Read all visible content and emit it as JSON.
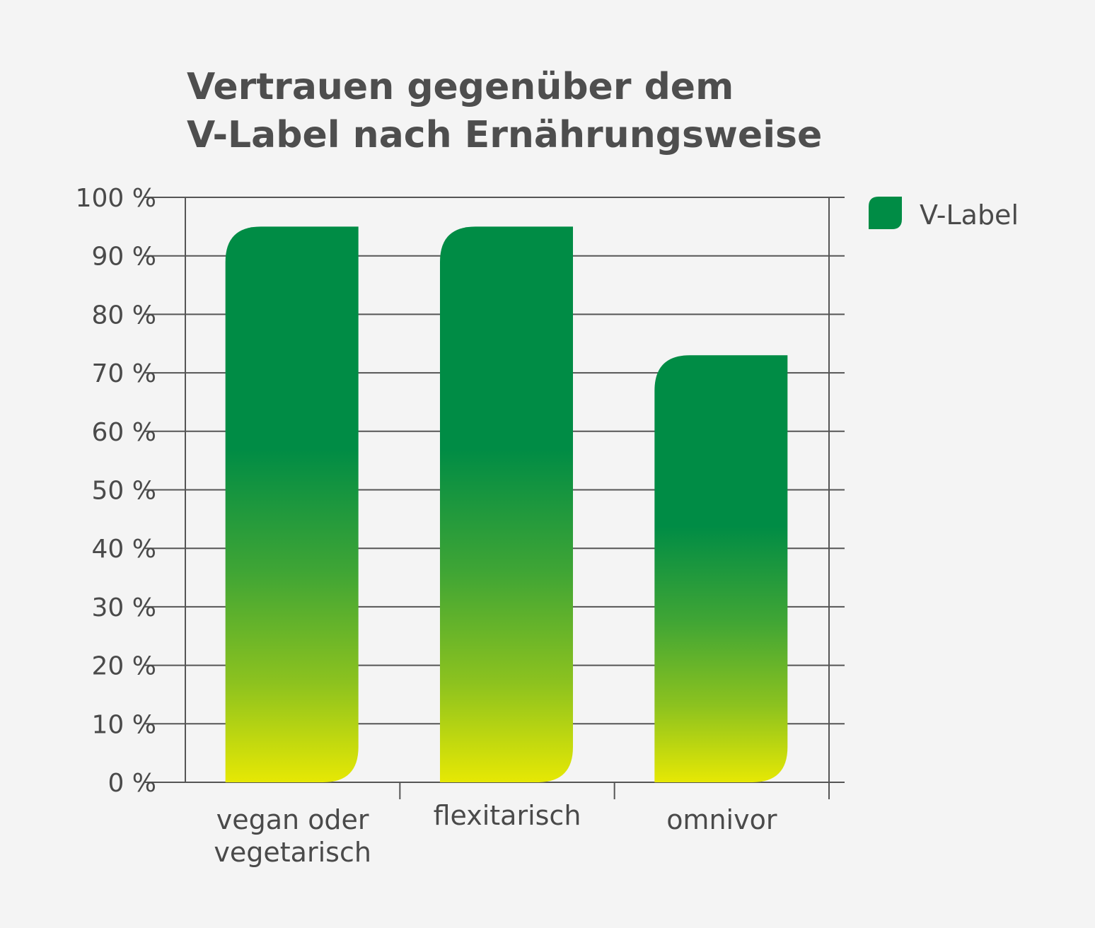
{
  "chart_data": {
    "type": "bar",
    "title": [
      "Vertrauen gegenüber dem",
      "V-Label nach Ernährungsweise"
    ],
    "categories": [
      [
        "vegan oder",
        "vegetarisch"
      ],
      [
        "flexitarisch"
      ],
      [
        "omnivor"
      ]
    ],
    "series": [
      {
        "name": "V-Label",
        "values": [
          95,
          95,
          73
        ]
      }
    ],
    "ylim": [
      0,
      100
    ],
    "y_ticks": [
      "0 %",
      "10 %",
      "20 %",
      "30 %",
      "40 %",
      "50 %",
      "60 %",
      "70 %",
      "80 %",
      "90 %",
      "100 %"
    ],
    "grid": true,
    "legend_position": "top-right",
    "colors": {
      "bar_top": "#008c45",
      "bar_mid": "#3fa535",
      "bar_low": "#8cc21f",
      "bar_bottom": "#e6e804",
      "axis": "#555555",
      "grid": "#555555",
      "background": "#f4f4f4"
    }
  }
}
